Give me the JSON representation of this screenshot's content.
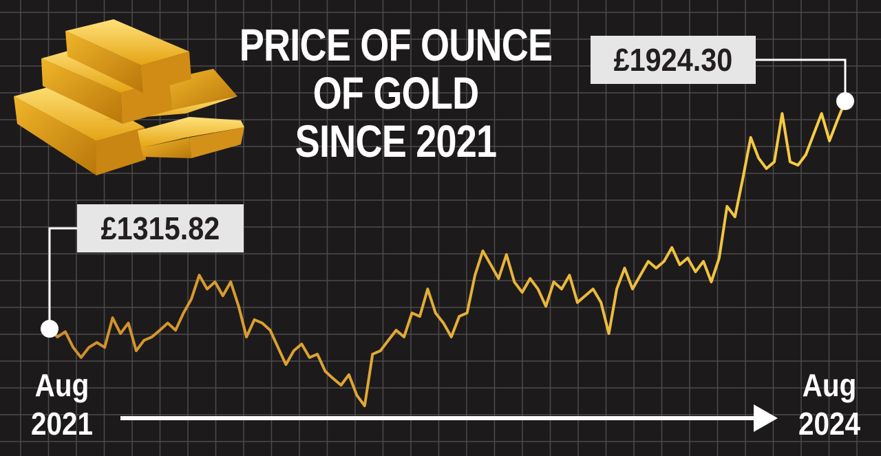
{
  "chart_data": {
    "type": "line",
    "title": "PRICE OF OUNCE\nOF GOLD\nSINCE 2021",
    "x_labels": [
      "Aug\n2021",
      "Aug\n2024"
    ],
    "annotations": [
      {
        "value": 1315.82,
        "label": "£1315.82"
      },
      {
        "value": 1924.3,
        "label": "£1924.30"
      }
    ],
    "series": [
      {
        "color": "#f2c23e",
        "values": [
          1315.82,
          1294,
          1308,
          1266,
          1239,
          1266,
          1279,
          1266,
          1345,
          1303,
          1331,
          1257,
          1285,
          1294,
          1312,
          1331,
          1312,
          1358,
          1395,
          1459,
          1422,
          1441,
          1404,
          1441,
          1376,
          1294,
          1340,
          1331,
          1312,
          1266,
          1220,
          1257,
          1275,
          1239,
          1248,
          1202,
          1183,
          1165,
          1193,
          1138,
          1110,
          1248,
          1257,
          1285,
          1312,
          1294,
          1358,
          1349,
          1422,
          1358,
          1331,
          1294,
          1349,
          1358,
          1459,
          1524,
          1487,
          1450,
          1514,
          1441,
          1413,
          1450,
          1422,
          1376,
          1441,
          1422,
          1459,
          1386,
          1404,
          1422,
          1386,
          1303,
          1422,
          1478,
          1422,
          1459,
          1496,
          1478,
          1496,
          1533,
          1487,
          1505,
          1468,
          1496,
          1441,
          1505,
          1643,
          1615,
          1717,
          1827,
          1772,
          1744,
          1762,
          1891,
          1762,
          1753,
          1781,
          1836,
          1891,
          1818,
          1873,
          1924.3
        ]
      }
    ]
  }
}
